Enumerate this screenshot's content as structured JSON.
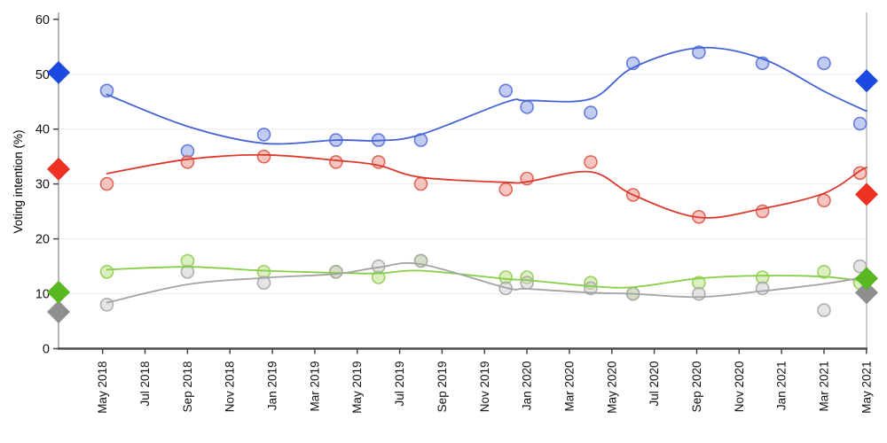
{
  "page": {
    "background": "#ffffff"
  },
  "chart_data": {
    "type": "scatter",
    "title": "",
    "ylabel": "Voting intention (%)",
    "ylim": [
      0,
      60
    ],
    "yticks": [
      0,
      10,
      20,
      30,
      40,
      50,
      60
    ],
    "gridlines": [
      10,
      20,
      30,
      40,
      50
    ],
    "legend_position": "none",
    "x_tick_labels": [
      "May 2018",
      "Jul 2018",
      "Sep 2018",
      "Nov 2018",
      "Jan 2019",
      "Mar 2019",
      "May 2019",
      "Jul 2019",
      "Sep 2019",
      "Nov 2019",
      "Jan 2020",
      "Mar 2020",
      "May 2020",
      "Jul 2020",
      "Sep 2020",
      "Nov 2020",
      "Jan 2021",
      "Mar 2021",
      "May 2021"
    ],
    "x_tick_month_offsets": [
      0,
      2,
      4,
      6,
      8,
      10,
      12,
      14,
      16,
      18,
      20,
      22,
      24,
      26,
      28,
      30,
      32,
      34,
      36
    ],
    "poll_dates": [
      "May 2018",
      "Sep 2018",
      "Dec 2018",
      "Apr 2019",
      "Jun 2019",
      "Aug 2019",
      "Dec 2019",
      "Jan 2020",
      "Apr 2020",
      "Jun 2020",
      "Sep 2020",
      "Dec 2020",
      "Mar 2021",
      "May 2021"
    ],
    "poll_month_offsets": [
      0.2,
      4,
      7.6,
      11,
      13,
      15,
      19,
      20,
      23,
      25,
      28.1,
      31.1,
      34,
      35.7
    ],
    "series": [
      {
        "name": "blue",
        "line_color": "#4263d8",
        "dot_fill": "#8da3e8",
        "dot_stroke": "#5a6fd8",
        "diamond_color": "#1c49e0",
        "polls": [
          47,
          36,
          39,
          38,
          38,
          38,
          47,
          44,
          43,
          52,
          54,
          52,
          52,
          41
        ],
        "trend": [
          46.3,
          40.5,
          37.4,
          38.0,
          37.9,
          39.0,
          44.9,
          45.2,
          45.5,
          51.2,
          54.8,
          52.8,
          46.9,
          43.8
        ],
        "trend_end": 43.3,
        "election_result_start": 50.3,
        "election_result_end": 48.8
      },
      {
        "name": "red",
        "line_color": "#dc3a2d",
        "dot_fill": "#f0958a",
        "dot_stroke": "#dd5a4c",
        "diamond_color": "#ee3123",
        "polls": [
          30,
          34,
          35,
          34,
          34,
          30,
          29,
          31,
          34,
          28,
          24,
          25,
          27,
          32
        ],
        "trend": [
          31.9,
          34.5,
          35.3,
          34.3,
          33.4,
          31.2,
          30.3,
          30.4,
          32.2,
          28.0,
          23.9,
          25.5,
          28.3,
          32.4
        ],
        "trend_end": 33.0,
        "election_result_start": 32.7,
        "election_result_end": 28.1
      },
      {
        "name": "green",
        "line_color": "#84cf44",
        "dot_fill": "#c0e18c",
        "dot_stroke": "#93cc52",
        "diamond_color": "#59b722",
        "polls": [
          14,
          16,
          14,
          14,
          13,
          16,
          13,
          13,
          12,
          10,
          12,
          13,
          14,
          12
        ],
        "trend": [
          14.4,
          14.9,
          14.2,
          13.8,
          13.7,
          14.2,
          12.7,
          12.5,
          11.4,
          11.2,
          12.8,
          13.3,
          13.1,
          12.4
        ],
        "trend_end": 12.4,
        "election_result_start": 10.3,
        "election_result_end": 12.8
      },
      {
        "name": "grey",
        "line_color": "#a3a3a3",
        "dot_fill": "#cfcfcf",
        "dot_stroke": "#a6a6a6",
        "diamond_color": "#8f8f8f",
        "polls": [
          8,
          14,
          12,
          14,
          15,
          16,
          11,
          12,
          11,
          10,
          10,
          11,
          7,
          15
        ],
        "trend": [
          8.4,
          11.7,
          12.9,
          13.6,
          14.8,
          15.4,
          11.1,
          10.9,
          10.2,
          10.0,
          9.4,
          10.5,
          11.8,
          12.9
        ],
        "trend_end": 13.2,
        "election_result_start": 6.7,
        "election_result_end": 10.2
      }
    ],
    "style": {
      "grid_color": "#ececec",
      "left_axis_color": "#9a9a9a",
      "right_border_color": "#bbbbbb",
      "bottom_axis_color": "#4d4d4d",
      "tick_color": "#444444",
      "label_color": "#111111"
    }
  }
}
